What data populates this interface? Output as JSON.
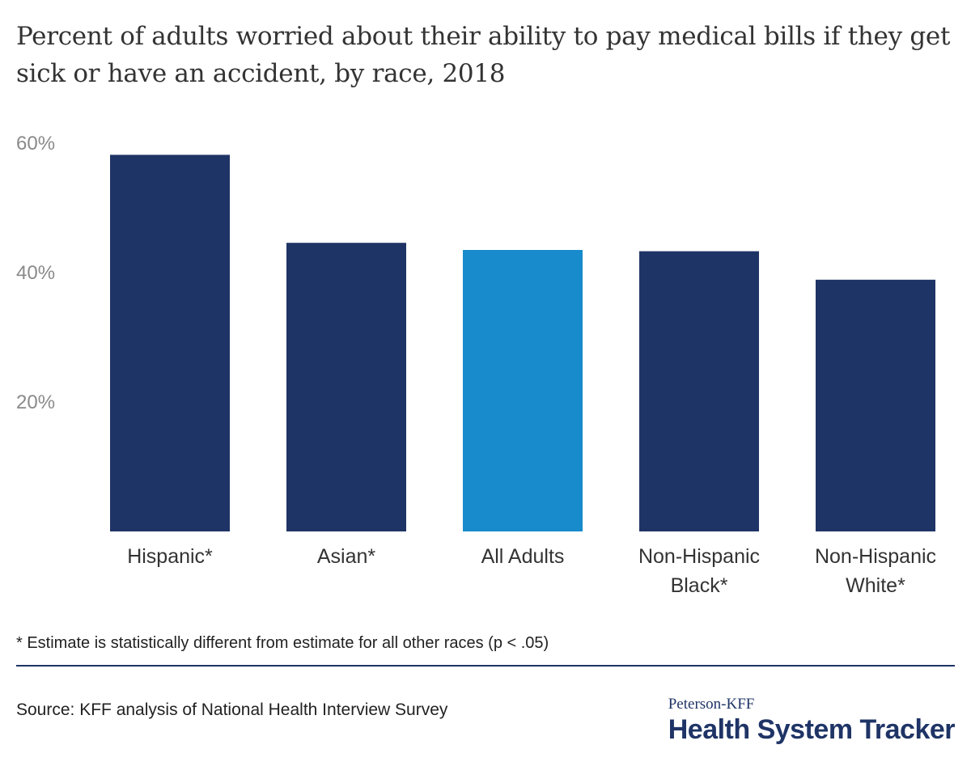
{
  "title": "Percent of adults worried about their ability to pay medical bills if they get sick or have an accident, by race, 2018",
  "footnote": "* Estimate is statistically different from estimate for all other races (p < .05)",
  "source": "Source: KFF analysis of National Health Interview Survey",
  "logo": {
    "top": "Peterson-KFF",
    "bottom": "Health System Tracker"
  },
  "colors": {
    "bar": "#1f3466",
    "highlight": "#178bcc",
    "rule": "#1f3466"
  },
  "chart_data": {
    "type": "bar",
    "title": "Percent of adults worried about their ability to pay medical bills if they get sick or have an accident, by race, 2018",
    "xlabel": "",
    "ylabel": "",
    "ylim": [
      0,
      60
    ],
    "yticks": [
      20,
      40,
      60
    ],
    "ytick_labels": [
      "20%",
      "40%",
      "60%"
    ],
    "grid": false,
    "categories": [
      [
        "Hispanic*"
      ],
      [
        "Asian*"
      ],
      [
        "All Adults"
      ],
      [
        "Non-Hispanic",
        "Black*"
      ],
      [
        "Non-Hispanic",
        "White*"
      ]
    ],
    "values": [
      58.2,
      44.6,
      43.5,
      43.3,
      38.9
    ],
    "highlight_index": 2
  }
}
